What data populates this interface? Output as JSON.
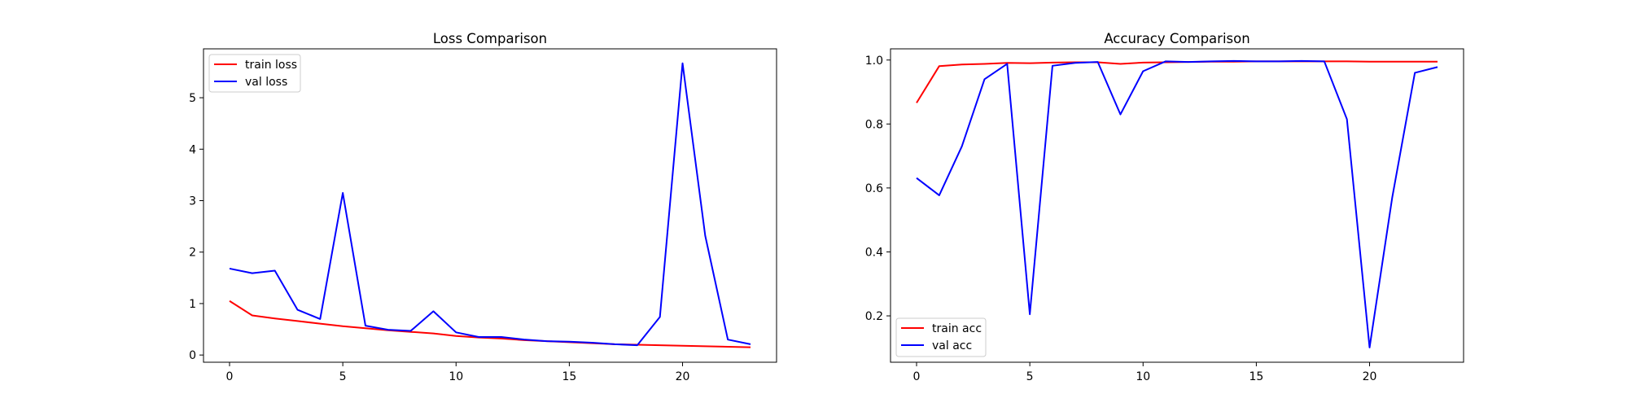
{
  "chart_data": [
    {
      "type": "line",
      "title": "Loss Comparison",
      "xlabel": "",
      "ylabel": "",
      "xlim": [
        -1.15,
        24.15
      ],
      "ylim": [
        -0.14,
        5.95
      ],
      "xticks": [
        0,
        5,
        10,
        15,
        20
      ],
      "yticks": [
        0,
        1,
        2,
        3,
        4,
        5
      ],
      "grid": false,
      "legend_position": "upper-left",
      "x": [
        0,
        1,
        2,
        3,
        4,
        5,
        6,
        7,
        8,
        9,
        10,
        11,
        12,
        13,
        14,
        15,
        16,
        17,
        18,
        19,
        20,
        21,
        22,
        23
      ],
      "series": [
        {
          "name": "train loss",
          "color": "#ff0000",
          "values": [
            1.05,
            0.77,
            0.71,
            0.66,
            0.61,
            0.56,
            0.52,
            0.48,
            0.45,
            0.42,
            0.37,
            0.34,
            0.32,
            0.29,
            0.27,
            0.25,
            0.23,
            0.21,
            0.2,
            0.19,
            0.18,
            0.17,
            0.16,
            0.15
          ]
        },
        {
          "name": "val loss",
          "color": "#0000ff",
          "values": [
            1.68,
            1.59,
            1.64,
            0.88,
            0.7,
            3.15,
            0.57,
            0.49,
            0.47,
            0.85,
            0.44,
            0.35,
            0.35,
            0.3,
            0.27,
            0.26,
            0.24,
            0.21,
            0.19,
            0.74,
            5.67,
            2.32,
            0.3,
            0.21
          ]
        }
      ]
    },
    {
      "type": "line",
      "title": "Accuracy Comparison",
      "xlabel": "",
      "ylabel": "",
      "xlim": [
        -1.15,
        24.15
      ],
      "ylim": [
        0.055,
        1.035
      ],
      "xticks": [
        0,
        5,
        10,
        15,
        20
      ],
      "yticks": [
        0.2,
        0.4,
        0.6,
        0.8,
        1.0
      ],
      "ytick_labels": [
        "0.2",
        "0.4",
        "0.6",
        "0.8",
        "1.0"
      ],
      "grid": false,
      "legend_position": "lower-left",
      "x": [
        0,
        1,
        2,
        3,
        4,
        5,
        6,
        7,
        8,
        9,
        10,
        11,
        12,
        13,
        14,
        15,
        16,
        17,
        18,
        19,
        20,
        21,
        22,
        23
      ],
      "series": [
        {
          "name": "train acc",
          "color": "#ff0000",
          "values": [
            0.866,
            0.981,
            0.986,
            0.988,
            0.991,
            0.99,
            0.992,
            0.993,
            0.993,
            0.988,
            0.992,
            0.993,
            0.994,
            0.995,
            0.995,
            0.996,
            0.996,
            0.996,
            0.996,
            0.996,
            0.995,
            0.995,
            0.995,
            0.995
          ]
        },
        {
          "name": "val acc",
          "color": "#0000ff",
          "values": [
            0.631,
            0.577,
            0.73,
            0.94,
            0.988,
            0.205,
            0.982,
            0.991,
            0.994,
            0.83,
            0.965,
            0.996,
            0.994,
            0.996,
            0.997,
            0.996,
            0.996,
            0.997,
            0.996,
            0.815,
            0.101,
            0.57,
            0.96,
            0.978
          ]
        }
      ]
    }
  ]
}
